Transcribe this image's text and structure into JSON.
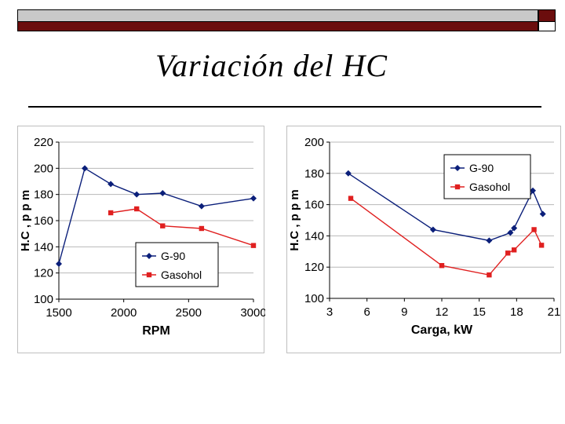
{
  "slide": {
    "title": "Variación del HC"
  },
  "colors": {
    "series1": "#0b1f7a",
    "series2": "#e02020",
    "banner_dark": "#6b0d0d",
    "banner_light": "#c9c9c9"
  },
  "chart_data": [
    {
      "type": "line",
      "xlabel": "RPM",
      "ylabel": "H.C , p p m",
      "xlim": [
        1500,
        3000
      ],
      "ylim": [
        100,
        220
      ],
      "xticks": [
        1500,
        2000,
        2500,
        3000
      ],
      "yticks": [
        100,
        120,
        140,
        160,
        180,
        200,
        220
      ],
      "grid": "horizontal",
      "legend_position": "bottom-center",
      "series": [
        {
          "name": "G-90",
          "marker": "diamond",
          "x": [
            1500,
            1700,
            1900,
            2100,
            2300,
            2600,
            3000
          ],
          "values": [
            127,
            200,
            188,
            180,
            181,
            171,
            177
          ]
        },
        {
          "name": "Gasohol",
          "marker": "square",
          "x": [
            1900,
            2100,
            2300,
            2600,
            3000
          ],
          "values": [
            166,
            169,
            156,
            154,
            141
          ]
        }
      ]
    },
    {
      "type": "line",
      "xlabel": "Carga, kW",
      "ylabel": "H.C , p p m",
      "xlim": [
        3,
        21
      ],
      "ylim": [
        100,
        200
      ],
      "xticks": [
        3,
        6,
        9,
        12,
        15,
        18,
        21
      ],
      "yticks": [
        100,
        120,
        140,
        160,
        180,
        200
      ],
      "grid": "horizontal",
      "legend_position": "top-right",
      "series": [
        {
          "name": "G-90",
          "marker": "diamond",
          "x": [
            4.5,
            11.3,
            15.8,
            17.5,
            17.8,
            19.3,
            20.1
          ],
          "values": [
            180,
            144,
            137,
            142,
            145,
            169,
            154
          ]
        },
        {
          "name": "Gasohol",
          "marker": "square",
          "x": [
            4.7,
            12,
            15.8,
            17.3,
            17.8,
            19.4,
            20
          ],
          "values": [
            164,
            121,
            115,
            129,
            131,
            144,
            134
          ]
        }
      ]
    }
  ]
}
